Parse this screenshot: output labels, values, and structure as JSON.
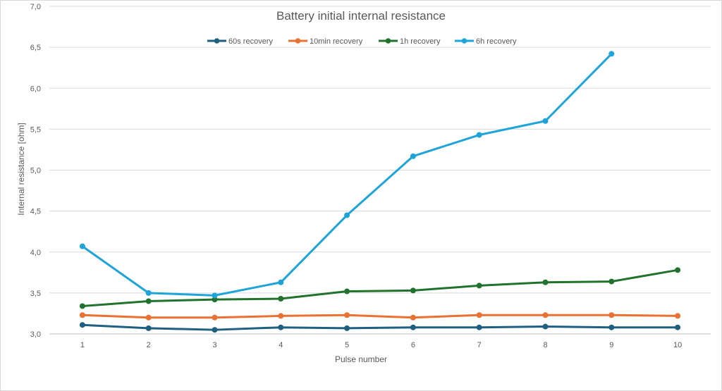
{
  "chart_data": {
    "type": "line",
    "title": "Battery initial internal resistance",
    "xlabel": "Pulse number",
    "ylabel": "Internal resistance [ohm]",
    "x": [
      1,
      2,
      3,
      4,
      5,
      6,
      7,
      8,
      9,
      10
    ],
    "ylim": [
      3.0,
      7.0
    ],
    "y_ticks": [
      "3,0",
      "3,5",
      "4,0",
      "4,5",
      "5,0",
      "5,5",
      "6,0",
      "6,5",
      "7,0"
    ],
    "grid": true,
    "legend_position": "top",
    "series": [
      {
        "name": "60s recovery",
        "color": "#1f5f80",
        "values": [
          3.11,
          3.07,
          3.05,
          3.08,
          3.07,
          3.08,
          3.08,
          3.09,
          3.08,
          3.08
        ]
      },
      {
        "name": "10min recovery",
        "color": "#e97132",
        "values": [
          3.23,
          3.2,
          3.2,
          3.22,
          3.23,
          3.2,
          3.23,
          3.23,
          3.23,
          3.22
        ]
      },
      {
        "name": "1h recovery",
        "color": "#21722d",
        "values": [
          3.34,
          3.4,
          3.42,
          3.43,
          3.52,
          3.53,
          3.59,
          3.63,
          3.64,
          3.78
        ]
      },
      {
        "name": "6h recovery",
        "color": "#1ea4d8",
        "values": [
          4.07,
          3.5,
          3.47,
          3.63,
          4.45,
          5.17,
          5.43,
          5.6,
          6.42,
          null
        ]
      }
    ]
  }
}
